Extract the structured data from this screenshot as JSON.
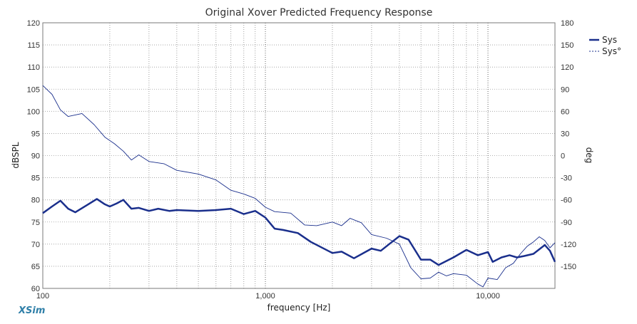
{
  "chart_data": {
    "type": "line",
    "title": "Original Xover Predicted Frequency Response",
    "xlabel": "frequency [Hz]",
    "ylabel": "dBSPL",
    "y2label": "deg",
    "x_scale": "log",
    "xlim": [
      100,
      20000
    ],
    "ylim": [
      60,
      120
    ],
    "y2lim": [
      -180,
      180
    ],
    "x_ticks": [
      {
        "value": 100,
        "label": "100"
      },
      {
        "value": 1000,
        "label": "1,000"
      },
      {
        "value": 10000,
        "label": "10,000"
      }
    ],
    "y_ticks": [
      60,
      65,
      70,
      75,
      80,
      85,
      90,
      95,
      100,
      105,
      110,
      115,
      120
    ],
    "y2_ticks": [
      -150,
      -120,
      -90,
      -60,
      -30,
      0,
      30,
      60,
      90,
      120,
      150,
      180
    ],
    "grid": true,
    "legend_position": "top-right",
    "series": [
      {
        "name": "Sys",
        "axis": "left",
        "color": "#1a2f8c",
        "style": "solid",
        "points": [
          [
            100,
            77
          ],
          [
            110,
            78.5
          ],
          [
            120,
            79.8
          ],
          [
            130,
            78
          ],
          [
            140,
            77.2
          ],
          [
            160,
            79
          ],
          [
            175,
            80.2
          ],
          [
            190,
            79
          ],
          [
            200,
            78.5
          ],
          [
            215,
            79.2
          ],
          [
            230,
            80
          ],
          [
            250,
            78
          ],
          [
            270,
            78.2
          ],
          [
            300,
            77.5
          ],
          [
            330,
            78
          ],
          [
            370,
            77.5
          ],
          [
            400,
            77.7
          ],
          [
            500,
            77.5
          ],
          [
            600,
            77.7
          ],
          [
            700,
            78
          ],
          [
            800,
            76.8
          ],
          [
            900,
            77.5
          ],
          [
            1000,
            76
          ],
          [
            1100,
            73.5
          ],
          [
            1200,
            73.2
          ],
          [
            1400,
            72.5
          ],
          [
            1600,
            70.5
          ],
          [
            2000,
            68
          ],
          [
            2200,
            68.3
          ],
          [
            2500,
            66.8
          ],
          [
            3000,
            69
          ],
          [
            3300,
            68.5
          ],
          [
            3600,
            70
          ],
          [
            4000,
            71.8
          ],
          [
            4400,
            71
          ],
          [
            5000,
            66.5
          ],
          [
            5500,
            66.5
          ],
          [
            6000,
            65.3
          ],
          [
            7000,
            67
          ],
          [
            8000,
            68.7
          ],
          [
            9000,
            67.5
          ],
          [
            10000,
            68.2
          ],
          [
            10500,
            66
          ],
          [
            11500,
            67
          ],
          [
            12500,
            67.5
          ],
          [
            13500,
            67
          ],
          [
            14500,
            67.3
          ],
          [
            16000,
            67.8
          ],
          [
            18000,
            69.8
          ],
          [
            19000,
            68.5
          ],
          [
            20000,
            66
          ]
        ]
      },
      {
        "name": "Sys°",
        "axis": "right",
        "color": "#1a2f8c",
        "style": "dashed-thin",
        "points": [
          [
            100,
            95
          ],
          [
            110,
            83
          ],
          [
            120,
            62
          ],
          [
            130,
            53
          ],
          [
            150,
            57
          ],
          [
            170,
            42
          ],
          [
            190,
            25
          ],
          [
            210,
            16
          ],
          [
            230,
            6
          ],
          [
            250,
            -6
          ],
          [
            270,
            1
          ],
          [
            300,
            -8
          ],
          [
            350,
            -11
          ],
          [
            400,
            -20
          ],
          [
            500,
            -25
          ],
          [
            600,
            -33
          ],
          [
            700,
            -47
          ],
          [
            800,
            -52
          ],
          [
            900,
            -58
          ],
          [
            1000,
            -70
          ],
          [
            1100,
            -76
          ],
          [
            1300,
            -78
          ],
          [
            1500,
            -94
          ],
          [
            1700,
            -95
          ],
          [
            2000,
            -90
          ],
          [
            2200,
            -95
          ],
          [
            2400,
            -85
          ],
          [
            2700,
            -91
          ],
          [
            3000,
            -107
          ],
          [
            3500,
            -112
          ],
          [
            4000,
            -120
          ],
          [
            4500,
            -152
          ],
          [
            5000,
            -167
          ],
          [
            5500,
            -166
          ],
          [
            6000,
            -158
          ],
          [
            6500,
            -163
          ],
          [
            7000,
            -160
          ],
          [
            8000,
            -162
          ],
          [
            9000,
            -174
          ],
          [
            9500,
            -178
          ],
          [
            10000,
            -166
          ],
          [
            11000,
            -168
          ],
          [
            12000,
            -152
          ],
          [
            13000,
            -146
          ],
          [
            14000,
            -133
          ],
          [
            15000,
            -123
          ],
          [
            16000,
            -117
          ],
          [
            17000,
            -110
          ],
          [
            18000,
            -115
          ],
          [
            19000,
            -125
          ],
          [
            20000,
            -118
          ]
        ]
      }
    ]
  },
  "branding": {
    "label": "XSim"
  }
}
